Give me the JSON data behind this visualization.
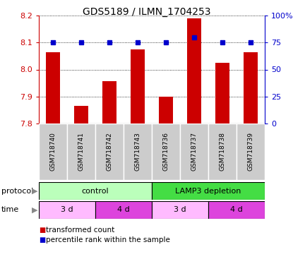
{
  "title": "GDS5189 / ILMN_1704253",
  "samples": [
    "GSM718740",
    "GSM718741",
    "GSM718742",
    "GSM718743",
    "GSM718736",
    "GSM718737",
    "GSM718738",
    "GSM718739"
  ],
  "transformed_count": [
    8.065,
    7.865,
    7.958,
    8.075,
    7.9,
    8.19,
    8.025,
    8.065
  ],
  "percentile_rank": [
    75,
    75,
    75,
    75,
    75,
    80,
    75,
    75
  ],
  "ylim_left": [
    7.8,
    8.2
  ],
  "ylim_right": [
    0,
    100
  ],
  "yticks_left": [
    7.8,
    7.9,
    8.0,
    8.1,
    8.2
  ],
  "yticks_right": [
    0,
    25,
    50,
    75,
    100
  ],
  "bar_color": "#cc0000",
  "dot_color": "#0000cc",
  "protocol_control_color": "#bbffbb",
  "protocol_lamp3_color": "#44dd44",
  "time_3d_color": "#ffbbff",
  "time_4d_color": "#dd44dd",
  "sample_bg_color": "#cccccc",
  "legend_red": "transformed count",
  "legend_blue": "percentile rank within the sample",
  "fig_width": 4.15,
  "fig_height": 3.84
}
